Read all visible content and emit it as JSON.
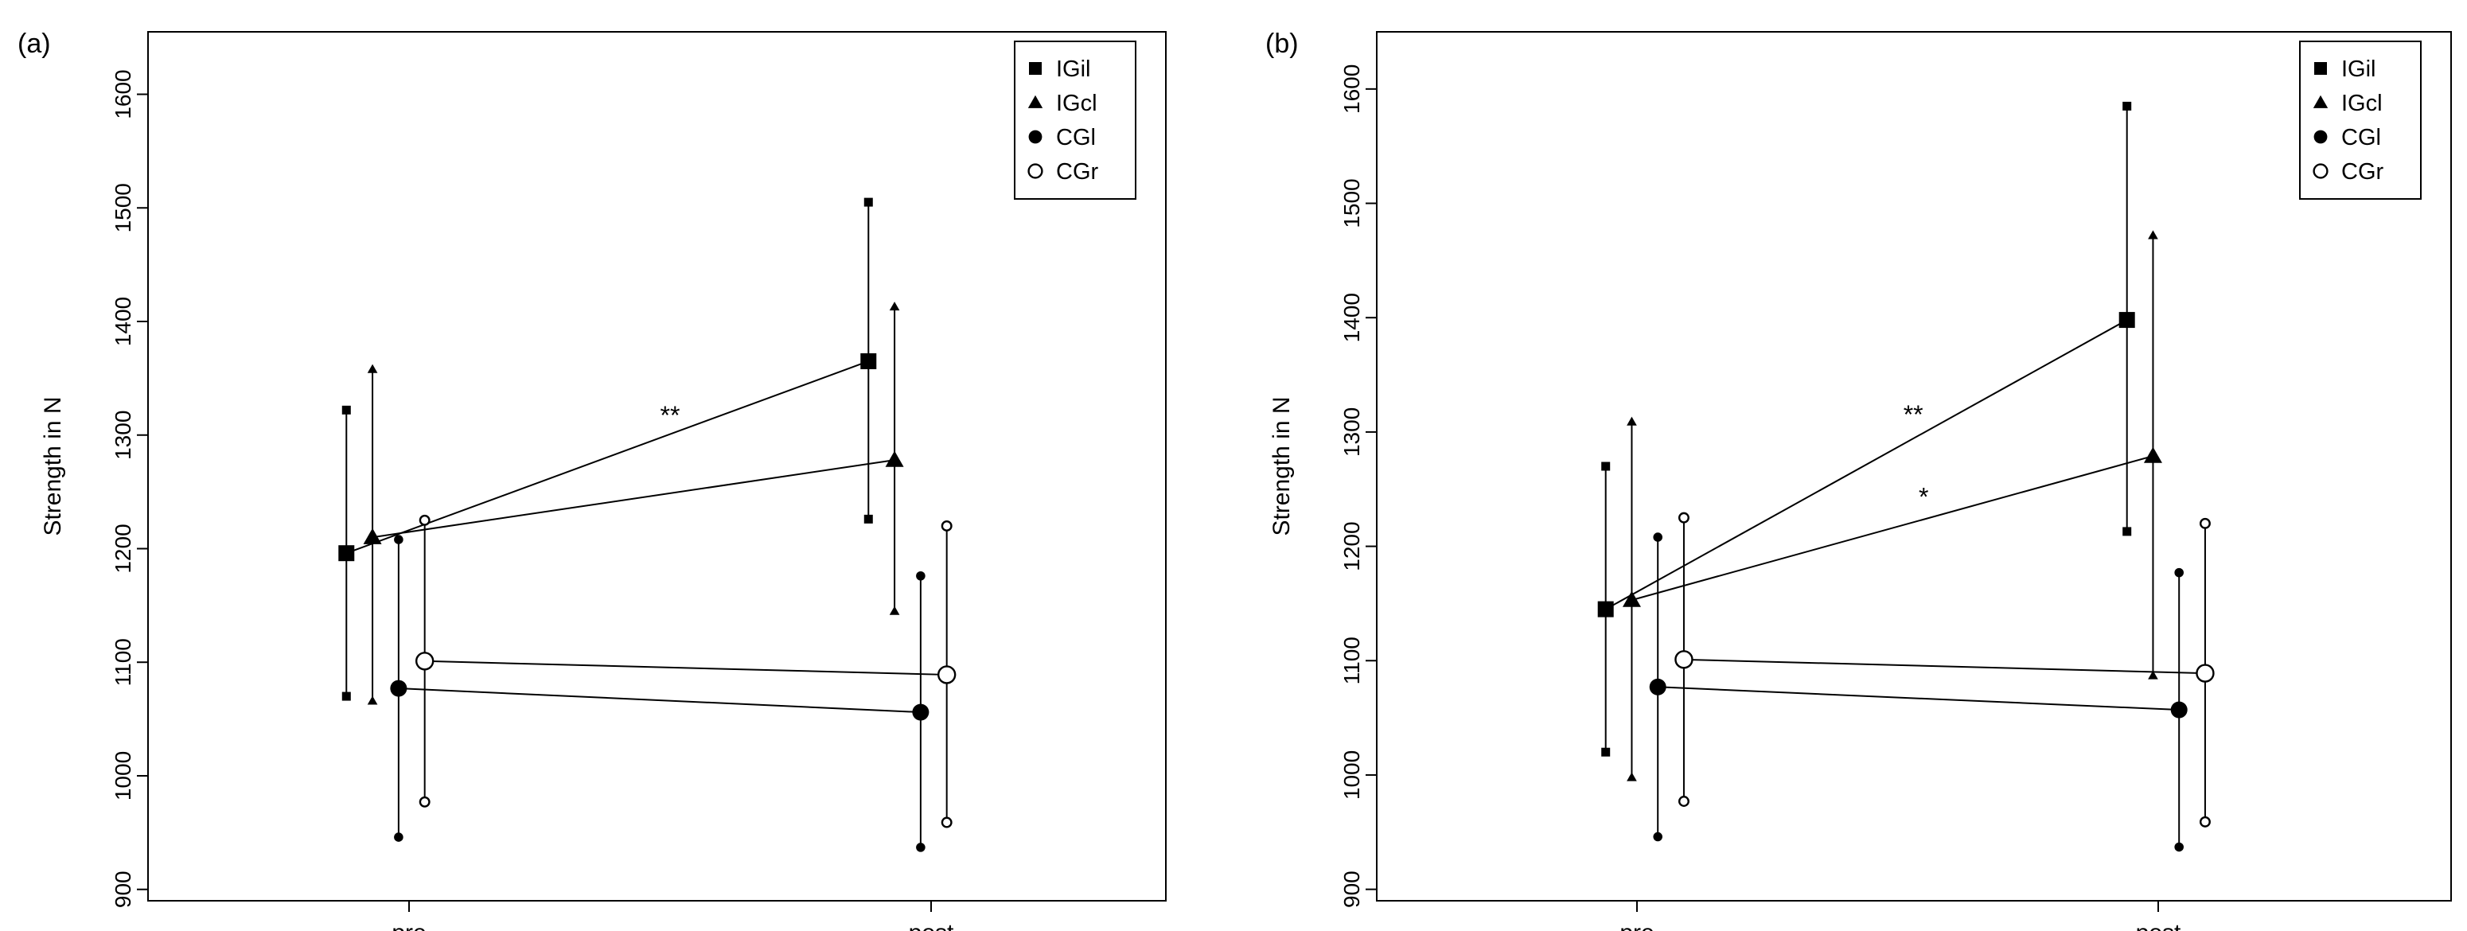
{
  "chart_data": [
    {
      "type": "scatter",
      "panel_label": "(a)",
      "ylabel": "Strength in N",
      "xlabel": "",
      "categories": [
        "pre",
        "post"
      ],
      "ylim": [
        890,
        1655
      ],
      "yticks": [
        900,
        1000,
        1100,
        1200,
        1300,
        1400,
        1500,
        1600
      ],
      "grid": false,
      "legend_position": "top-right",
      "series": [
        {
          "name": "IGil",
          "marker": "square",
          "offset": -0.12,
          "mean": [
            1196,
            1365
          ],
          "lower": [
            1070,
            1226
          ],
          "upper": [
            1322,
            1505
          ]
        },
        {
          "name": "IGcl",
          "marker": "triangle",
          "offset": -0.07,
          "mean": [
            1210,
            1278
          ],
          "lower": [
            1066,
            1145
          ],
          "upper": [
            1358,
            1413
          ]
        },
        {
          "name": "CGl",
          "marker": "circle",
          "offset": -0.02,
          "mean": [
            1077,
            1056
          ],
          "lower": [
            946,
            937
          ],
          "upper": [
            1208,
            1176
          ]
        },
        {
          "name": "CGr",
          "marker": "open-circle",
          "offset": 0.03,
          "mean": [
            1101,
            1089
          ],
          "lower": [
            977,
            959
          ],
          "upper": [
            1225,
            1220
          ]
        }
      ],
      "annotations": [
        {
          "text": "**",
          "x": 0.5,
          "y": 1318
        }
      ]
    },
    {
      "type": "scatter",
      "panel_label": "(b)",
      "ylabel": "Strength in N",
      "xlabel": "",
      "categories": [
        "pre",
        "post"
      ],
      "ylim": [
        890,
        1650
      ],
      "yticks": [
        900,
        1000,
        1100,
        1200,
        1300,
        1400,
        1500,
        1600
      ],
      "grid": false,
      "legend_position": "top-right",
      "series": [
        {
          "name": "IGil",
          "marker": "square",
          "offset": -0.06,
          "mean": [
            1145,
            1398
          ],
          "lower": [
            1020,
            1213
          ],
          "upper": [
            1270,
            1585
          ]
        },
        {
          "name": "IGcl",
          "marker": "triangle",
          "offset": -0.01,
          "mean": [
            1153,
            1279
          ],
          "lower": [
            998,
            1087
          ],
          "upper": [
            1309,
            1472
          ]
        },
        {
          "name": "CGl",
          "marker": "circle",
          "offset": 0.04,
          "mean": [
            1077,
            1057
          ],
          "lower": [
            946,
            937
          ],
          "upper": [
            1208,
            1177
          ]
        },
        {
          "name": "CGr",
          "marker": "open-circle",
          "offset": 0.09,
          "mean": [
            1101,
            1089
          ],
          "lower": [
            977,
            959
          ],
          "upper": [
            1225,
            1220
          ]
        }
      ],
      "annotations": [
        {
          "text": "**",
          "x": 0.53,
          "y": 1316
        },
        {
          "text": "*",
          "x": 0.55,
          "y": 1244
        }
      ]
    }
  ]
}
